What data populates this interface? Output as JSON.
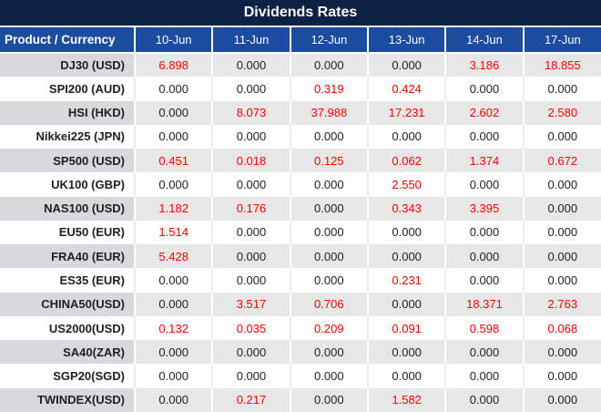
{
  "chart_data": {
    "type": "table",
    "title": "Dividends Rates",
    "product_column_header": "Product / Currency",
    "date_columns": [
      "10-Jun",
      "11-Jun",
      "12-Jun",
      "13-Jun",
      "14-Jun",
      "17-Jun"
    ],
    "rows": [
      {
        "product": "DJ30 (USD)",
        "values": [
          "6.898",
          "0.000",
          "0.000",
          "0.000",
          "3.186",
          "18.855"
        ],
        "red": [
          true,
          false,
          false,
          false,
          true,
          true
        ]
      },
      {
        "product": "SPI200 (AUD)",
        "values": [
          "0.000",
          "0.000",
          "0.319",
          "0.424",
          "0.000",
          "0.000"
        ],
        "red": [
          false,
          false,
          true,
          true,
          false,
          false
        ]
      },
      {
        "product": "HSI (HKD)",
        "values": [
          "0.000",
          "8.073",
          "37.988",
          "17.231",
          "2.602",
          "2.580"
        ],
        "red": [
          false,
          true,
          true,
          true,
          true,
          true
        ]
      },
      {
        "product": "Nikkei225 (JPN)",
        "values": [
          "0.000",
          "0.000",
          "0.000",
          "0.000",
          "0.000",
          "0.000"
        ],
        "red": [
          false,
          false,
          false,
          false,
          false,
          false
        ]
      },
      {
        "product": "SP500 (USD)",
        "values": [
          "0.451",
          "0.018",
          "0.125",
          "0.062",
          "1.374",
          "0.672"
        ],
        "red": [
          true,
          true,
          true,
          true,
          true,
          true
        ]
      },
      {
        "product": "UK100 (GBP)",
        "values": [
          "0.000",
          "0.000",
          "0.000",
          "2.550",
          "0.000",
          "0.000"
        ],
        "red": [
          false,
          false,
          false,
          true,
          false,
          false
        ]
      },
      {
        "product": "NAS100 (USD)",
        "values": [
          "1.182",
          "0.176",
          "0.000",
          "0.343",
          "3.395",
          "0.000"
        ],
        "red": [
          true,
          true,
          false,
          true,
          true,
          false
        ]
      },
      {
        "product": "EU50 (EUR)",
        "values": [
          "1.514",
          "0.000",
          "0.000",
          "0.000",
          "0.000",
          "0.000"
        ],
        "red": [
          true,
          false,
          false,
          false,
          false,
          false
        ]
      },
      {
        "product": "FRA40 (EUR)",
        "values": [
          "5.428",
          "0.000",
          "0.000",
          "0.000",
          "0.000",
          "0.000"
        ],
        "red": [
          true,
          false,
          false,
          false,
          false,
          false
        ]
      },
      {
        "product": "ES35 (EUR)",
        "values": [
          "0.000",
          "0.000",
          "0.000",
          "0.231",
          "0.000",
          "0.000"
        ],
        "red": [
          false,
          false,
          false,
          true,
          false,
          false
        ]
      },
      {
        "product": "CHINA50(USD)",
        "values": [
          "0.000",
          "3.517",
          "0.706",
          "0.000",
          "18.371",
          "2.763"
        ],
        "red": [
          false,
          true,
          true,
          false,
          true,
          true
        ]
      },
      {
        "product": "US2000(USD)",
        "values": [
          "0.132",
          "0.035",
          "0.209",
          "0.091",
          "0.598",
          "0.068"
        ],
        "red": [
          true,
          true,
          true,
          true,
          true,
          true
        ]
      },
      {
        "product": "SA40(ZAR)",
        "values": [
          "0.000",
          "0.000",
          "0.000",
          "0.000",
          "0.000",
          "0.000"
        ],
        "red": [
          false,
          false,
          false,
          false,
          false,
          false
        ]
      },
      {
        "product": "SGP20(SGD)",
        "values": [
          "0.000",
          "0.000",
          "0.000",
          "0.000",
          "0.000",
          "0.000"
        ],
        "red": [
          false,
          false,
          false,
          false,
          false,
          false
        ]
      },
      {
        "product": "TWINDEX(USD)",
        "values": [
          "0.000",
          "0.217",
          "0.000",
          "1.582",
          "0.000",
          "0.000"
        ],
        "red": [
          false,
          true,
          false,
          true,
          false,
          false
        ]
      }
    ]
  },
  "colors": {
    "title_bg": "#0c2144",
    "header_bg": "#1b4c9e",
    "header_text": "#ffffff",
    "stripe_product_bg": "#d7d9dc",
    "stripe_values_bg": "#e7e7e7",
    "white_row_bg": "#ffffff",
    "value_red": "#fe0000",
    "value_default": "#1f1f1f"
  }
}
